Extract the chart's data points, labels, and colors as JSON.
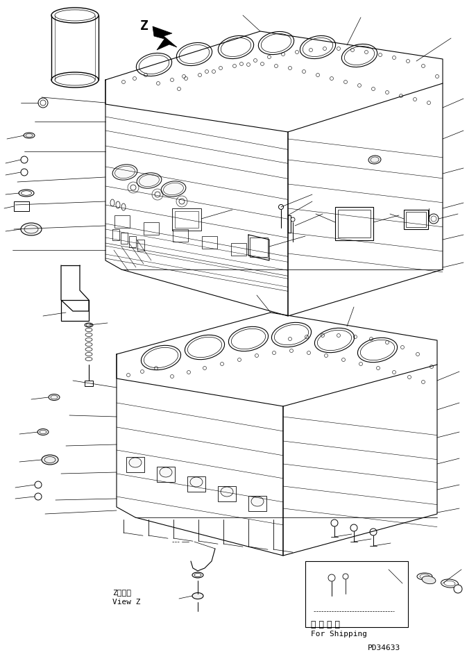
{
  "bg_color": "#ffffff",
  "fig_width": 6.86,
  "fig_height": 9.46,
  "dpi": 100,
  "label_z": "Z",
  "label_z_kanji": "Z　　視",
  "label_view_z": "View Z",
  "label_shipping_cn": "運 搄 部 品",
  "label_shipping_en": "For Shipping",
  "label_part_num": "PD34633",
  "lw_main": 0.8,
  "lw_thin": 0.4,
  "lw_leader": 0.5
}
